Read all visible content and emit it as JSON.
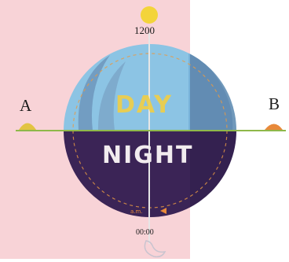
{
  "labels": {
    "noon": "1200",
    "midnight": "00:00",
    "point_a": "A",
    "point_b": "B",
    "day": "DAY",
    "night": "NIGHT"
  },
  "colors": {
    "left_band": "#f8d3d7",
    "sun": "#f3d43a",
    "sky_day": "#8cc4e4",
    "sky_night": "#3b2456",
    "horizon": "#8fb84a",
    "day_text": "#f1cf45",
    "night_text": "#f2ecef",
    "orange_mound": "#e8893a"
  },
  "icons": [
    "sun-icon",
    "moon-icon",
    "sun-mound-icon",
    "orange-mound-icon"
  ]
}
